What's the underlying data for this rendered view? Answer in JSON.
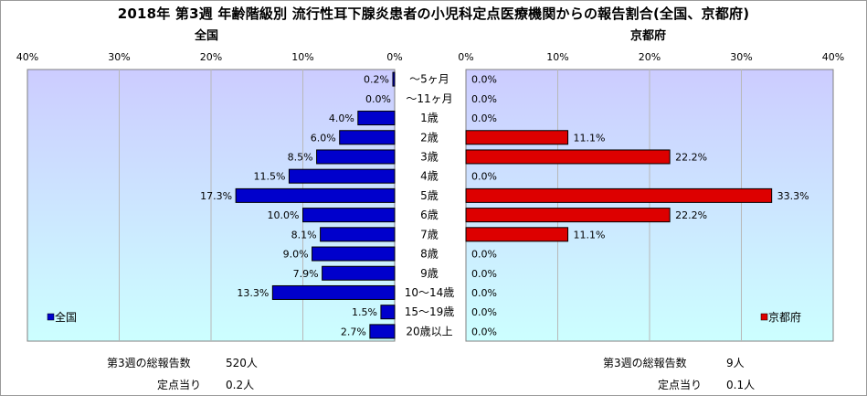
{
  "page": {
    "title": "2018年 第3週 年齢階級別 流行性耳下腺炎患者の小児科定点医療機関からの報告割合(全国、京都府)"
  },
  "colors": {
    "zenkoku_bar": "#0000cc",
    "kyoto_bar": "#dd0000",
    "plot_bg_top": "#ccccff",
    "plot_bg_bottom": "#ccffff"
  },
  "chart_data": [
    {
      "type": "bar",
      "orientation": "horizontal",
      "direction": "right-to-left",
      "title": "全国",
      "categories": [
        "～5ヶ月",
        "～11ヶ月",
        "1歳",
        "2歳",
        "3歳",
        "4歳",
        "5歳",
        "6歳",
        "7歳",
        "8歳",
        "9歳",
        "10～14歳",
        "15～19歳",
        "20歳以上"
      ],
      "series": [
        {
          "name": "全国",
          "values": [
            0.2,
            0.0,
            4.0,
            6.0,
            8.5,
            11.5,
            17.3,
            10.0,
            8.1,
            9.0,
            7.9,
            13.3,
            1.5,
            2.7
          ],
          "labels": [
            "0.2%",
            "0.0%",
            "4.0%",
            "6.0%",
            "8.5%",
            "11.5%",
            "17.3%",
            "10.0%",
            "8.1%",
            "9.0%",
            "7.9%",
            "13.3%",
            "1.5%",
            "2.7%"
          ]
        }
      ],
      "xlim": [
        0,
        40
      ],
      "ticks": [
        "40%",
        "30%",
        "20%",
        "10%",
        "0%"
      ],
      "grid": true,
      "legend": "bottom-left"
    },
    {
      "type": "bar",
      "orientation": "horizontal",
      "direction": "left-to-right",
      "title": "京都府",
      "categories": [
        "～5ヶ月",
        "～11ヶ月",
        "1歳",
        "2歳",
        "3歳",
        "4歳",
        "5歳",
        "6歳",
        "7歳",
        "8歳",
        "9歳",
        "10～14歳",
        "15～19歳",
        "20歳以上"
      ],
      "series": [
        {
          "name": "京都府",
          "values": [
            0.0,
            0.0,
            0.0,
            11.1,
            22.2,
            0.0,
            33.3,
            22.2,
            11.1,
            0.0,
            0.0,
            0.0,
            0.0,
            0.0
          ],
          "labels": [
            "0.0%",
            "0.0%",
            "0.0%",
            "11.1%",
            "22.2%",
            "0.0%",
            "33.3%",
            "22.2%",
            "11.1%",
            "0.0%",
            "0.0%",
            "0.0%",
            "0.0%",
            "0.0%"
          ]
        }
      ],
      "xlim": [
        0,
        40
      ],
      "ticks": [
        "0%",
        "10%",
        "20%",
        "30%",
        "40%"
      ],
      "grid": true,
      "legend": "bottom-right"
    }
  ],
  "footer": {
    "zenkoku": {
      "total_label": "第3週の総報告数",
      "total_value": "520人",
      "per_label": "定点当り",
      "per_value": "0.2人"
    },
    "kyoto": {
      "total_label": "第3週の総報告数",
      "total_value": "9人",
      "per_label": "定点当り",
      "per_value": "0.1人"
    }
  }
}
